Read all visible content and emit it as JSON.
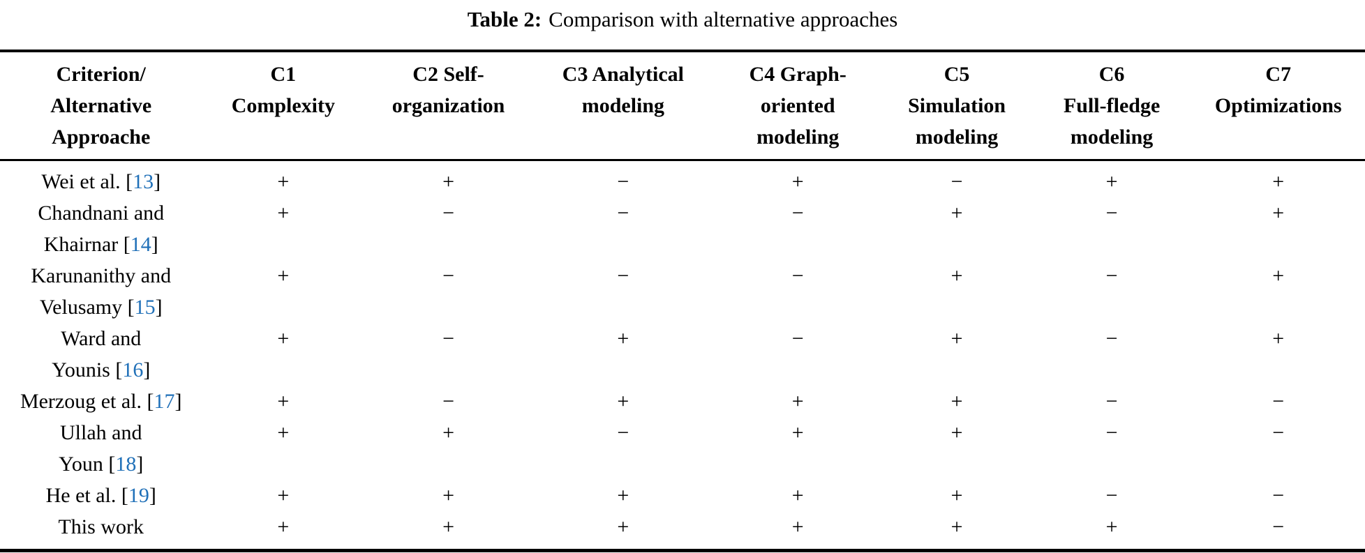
{
  "caption": {
    "label": "Table 2:",
    "text": "Comparison with alternative approaches"
  },
  "accent_color": "#2070b8",
  "table": {
    "col_widths_pct": [
      14.8,
      11.9,
      12.3,
      13.3,
      12.3,
      11.0,
      11.7,
      12.7
    ],
    "header": [
      {
        "id": "criterion",
        "lines": [
          "Criterion/",
          "Alternative",
          "Approache"
        ]
      },
      {
        "id": "c1",
        "lines": [
          "C1",
          "Complexity"
        ]
      },
      {
        "id": "c2",
        "lines": [
          "C2 Self-",
          "organization"
        ]
      },
      {
        "id": "c3",
        "lines": [
          "C3 Analytical",
          "modeling"
        ]
      },
      {
        "id": "c4",
        "lines": [
          "C4 Graph-",
          "oriented",
          "modeling"
        ]
      },
      {
        "id": "c5",
        "lines": [
          "C5",
          "Simulation",
          "modeling"
        ]
      },
      {
        "id": "c6",
        "lines": [
          "C6",
          "Full-fledge",
          "modeling"
        ]
      },
      {
        "id": "c7",
        "lines": [
          "C7",
          "Optimizations"
        ]
      }
    ],
    "rows": [
      {
        "approach_lines": [
          [
            {
              "text": "Wei et al. ["
            },
            {
              "text": "13",
              "cite": true
            },
            {
              "text": "]"
            }
          ]
        ],
        "values": [
          "+",
          "+",
          "−",
          "+",
          "−",
          "+",
          "+"
        ]
      },
      {
        "approach_lines": [
          [
            {
              "text": "Chandnani and"
            }
          ],
          [
            {
              "text": "Khairnar ["
            },
            {
              "text": "14",
              "cite": true
            },
            {
              "text": "]"
            }
          ]
        ],
        "values": [
          "+",
          "−",
          "−",
          "−",
          "+",
          "−",
          "+"
        ]
      },
      {
        "approach_lines": [
          [
            {
              "text": "Karunanithy and"
            }
          ],
          [
            {
              "text": "Velusamy ["
            },
            {
              "text": "15",
              "cite": true
            },
            {
              "text": "]"
            }
          ]
        ],
        "values": [
          "+",
          "−",
          "−",
          "−",
          "+",
          "−",
          "+"
        ]
      },
      {
        "approach_lines": [
          [
            {
              "text": "Ward and"
            }
          ],
          [
            {
              "text": "Younis ["
            },
            {
              "text": "16",
              "cite": true
            },
            {
              "text": "]"
            }
          ]
        ],
        "values": [
          "+",
          "−",
          "+",
          "−",
          "+",
          "−",
          "+"
        ]
      },
      {
        "approach_lines": [
          [
            {
              "text": "Merzoug et al. ["
            },
            {
              "text": "17",
              "cite": true
            },
            {
              "text": "]"
            }
          ]
        ],
        "values": [
          "+",
          "−",
          "+",
          "+",
          "+",
          "−",
          "−"
        ]
      },
      {
        "approach_lines": [
          [
            {
              "text": "Ullah and"
            }
          ],
          [
            {
              "text": "Youn ["
            },
            {
              "text": "18",
              "cite": true
            },
            {
              "text": "]"
            }
          ]
        ],
        "values": [
          "+",
          "+",
          "−",
          "+",
          "+",
          "−",
          "−"
        ]
      },
      {
        "approach_lines": [
          [
            {
              "text": "He et al. ["
            },
            {
              "text": "19",
              "cite": true
            },
            {
              "text": "]"
            }
          ]
        ],
        "values": [
          "+",
          "+",
          "+",
          "+",
          "+",
          "−",
          "−"
        ]
      },
      {
        "approach_lines": [
          [
            {
              "text": "This work"
            }
          ]
        ],
        "values": [
          "+",
          "+",
          "+",
          "+",
          "+",
          "+",
          "−"
        ]
      }
    ]
  }
}
